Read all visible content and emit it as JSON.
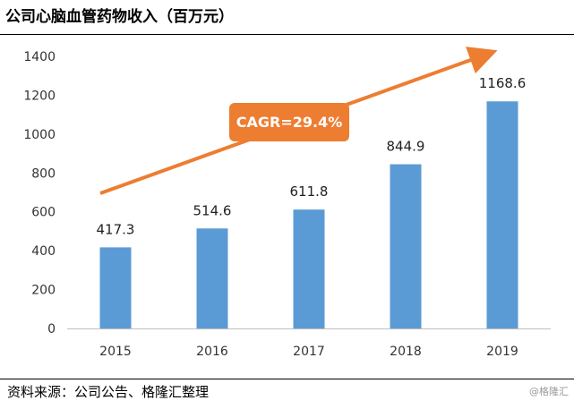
{
  "title": "公司心脑血管药物收入（百万元）",
  "source": "资料来源：公司公告、格隆汇整理",
  "watermark": "@格隆汇",
  "colors": {
    "bar": "#5b9bd5",
    "arrow": "#ed7d31",
    "badge": "#ed7d31"
  },
  "chart_data": {
    "type": "bar",
    "categories": [
      "2015",
      "2016",
      "2017",
      "2018",
      "2019"
    ],
    "values": [
      417.3,
      514.6,
      611.8,
      844.9,
      1168.6
    ],
    "value_labels": [
      "417.3",
      "514.6",
      "611.8",
      "844.9",
      "1168.6"
    ],
    "ylim": [
      0,
      1400
    ],
    "yticks": [
      0,
      200,
      400,
      600,
      800,
      1000,
      1200,
      1400
    ],
    "annotation": "CAGR=29.4%",
    "grid": false
  }
}
